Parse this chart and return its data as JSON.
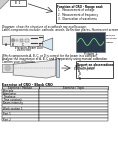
{
  "bg_color": "#ffffff",
  "function_box_title": "Function of CRO - Range and:",
  "function_box_items": [
    "1.  Measurement of voltage",
    "2.  Measurement of frequency",
    "3.  Observation of waveforms"
  ],
  "section1_text_line1": "Diagram: show the structure of a cathode ray oscilloscope.",
  "section1_text_line2": "Label components include: cathode, anode, deflection plates, fluorescent screen.",
  "picture_label": "Picture 1",
  "section2_line1": "Which components A, B, C, or D is correct for the beam in a cathode?",
  "section2_line2": "Analyse the importance of A, B, C and D separately using manual calibration.",
  "section2_line3": "Confirm your calibration.",
  "box2_title": "Report on observations",
  "box2_subtitle": "On the board:",
  "box2_items": [
    "A.",
    "B.",
    "C.",
    "D."
  ],
  "cro_symbol_label": "CRO\nExternal symbol",
  "table_title": "Exercise of CRO - Block CRO",
  "table_col1": "Exercise / Module",
  "table_col2": "Exercise / Topic",
  "table_rows": [
    "Principle",
    "Attenuator",
    "Timebase",
    "Time constant",
    "Beam intensity",
    "",
    "Work section 1",
    "",
    "Part 1",
    "",
    "Part 2"
  ],
  "wave_color": "#90ee90",
  "wave_bg": "#2a3a4a",
  "arrow_color": "#333333",
  "corner_color": "#cccccc"
}
